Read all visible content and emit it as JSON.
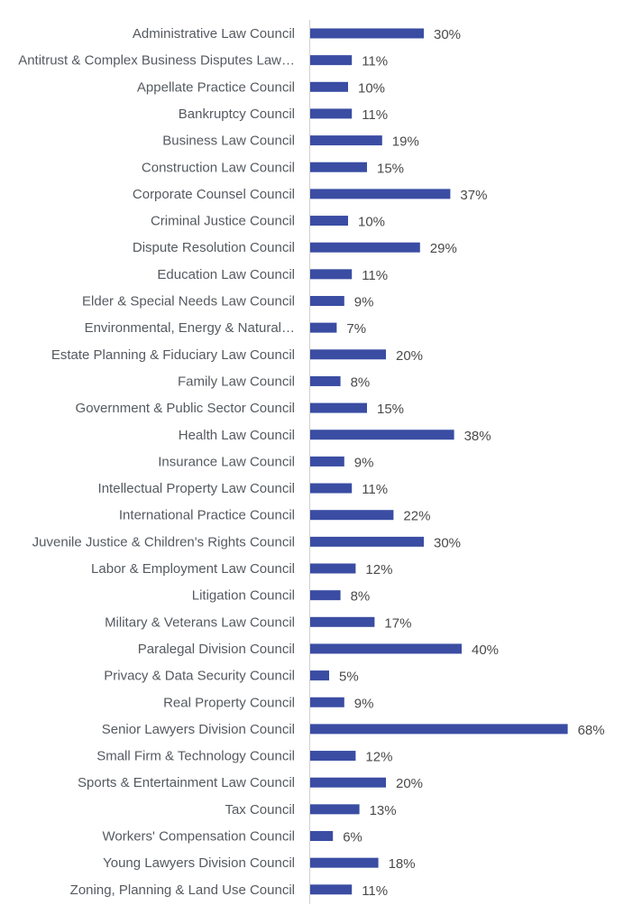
{
  "chart_data": {
    "type": "bar",
    "orientation": "horizontal",
    "title": "",
    "xlabel": "",
    "ylabel": "",
    "xlim": [
      0,
      70
    ],
    "grid": false,
    "legend": "none",
    "value_format": "percent",
    "bar_color": "#3a4da3",
    "categories": [
      "Administrative Law Council",
      "Antitrust & Complex Business Disputes Law…",
      "Appellate Practice Council",
      "Bankruptcy Council",
      "Business Law Council",
      "Construction Law Council",
      "Corporate Counsel Council",
      "Criminal Justice Council",
      "Dispute Resolution Council",
      "Education Law Council",
      "Elder & Special Needs Law Council",
      "Environmental, Energy & Natural…",
      "Estate Planning & Fiduciary Law Council",
      "Family Law Council",
      "Government & Public Sector Council",
      "Health Law Council",
      "Insurance Law Council",
      "Intellectual Property Law Council",
      "International Practice Council",
      "Juvenile Justice & Children's Rights Council",
      "Labor & Employment Law Council",
      "Litigation Council",
      "Military & Veterans Law Council",
      "Paralegal Division Council",
      "Privacy & Data Security Council",
      "Real Property Council",
      "Senior Lawyers Division Council",
      "Small Firm & Technology Council",
      "Sports & Entertainment Law Council",
      "Tax Council",
      "Workers' Compensation Council",
      "Young Lawyers Division Council",
      "Zoning, Planning & Land Use Council"
    ],
    "values": [
      30,
      11,
      10,
      11,
      19,
      15,
      37,
      10,
      29,
      11,
      9,
      7,
      20,
      8,
      15,
      38,
      9,
      11,
      22,
      30,
      12,
      8,
      17,
      40,
      5,
      9,
      68,
      12,
      20,
      13,
      6,
      18,
      11
    ],
    "data_labels": [
      "30%",
      "11%",
      "10%",
      "11%",
      "19%",
      "15%",
      "37%",
      "10%",
      "29%",
      "11%",
      "9%",
      "7%",
      "20%",
      "8%",
      "15%",
      "38%",
      "9%",
      "11%",
      "22%",
      "30%",
      "12%",
      "8%",
      "17%",
      "40%",
      "5%",
      "9%",
      "68%",
      "12%",
      "20%",
      "13%",
      "6%",
      "18%",
      "11%"
    ]
  }
}
